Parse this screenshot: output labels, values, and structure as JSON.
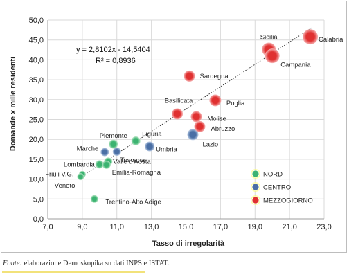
{
  "chart_data": {
    "type": "scatter",
    "xlabel": "Tasso di irregolarità",
    "ylabel": "Domande x mille residenti",
    "xlim": [
      7.0,
      23.0
    ],
    "ylim": [
      0.0,
      50.0
    ],
    "xticks": [
      7.0,
      9.0,
      11.0,
      13.0,
      15.0,
      17.0,
      19.0,
      21.0,
      23.0
    ],
    "yticks": [
      0.0,
      5.0,
      10.0,
      15.0,
      20.0,
      25.0,
      30.0,
      35.0,
      40.0,
      45.0,
      50.0
    ],
    "xtick_labels": [
      "7,0",
      "9,0",
      "11,0",
      "13,0",
      "15,0",
      "17,0",
      "19,0",
      "21,0",
      "23,0"
    ],
    "ytick_labels": [
      "0,0",
      "5,0",
      "10,0",
      "15,0",
      "20,0",
      "25,0",
      "30,0",
      "35,0",
      "40,0",
      "45,0",
      "50,0"
    ],
    "grid": true,
    "legend_position": "bottom-right",
    "trendline": {
      "slope": 2.8102,
      "intercept": -14.5404,
      "equation": "y = 2,8102x - 14,5404",
      "r2": "R² = 0,8936",
      "x_range": [
        8.9,
        22.3
      ]
    },
    "series": [
      {
        "name": "NORD",
        "color": "#3cb371",
        "points": [
          {
            "label": "Friuli V.G.",
            "x": 9.0,
            "y": 11.2
          },
          {
            "label": "Veneto",
            "x": 8.9,
            "y": 10.6
          },
          {
            "label": "Lombardia",
            "x": 10.0,
            "y": 13.7
          },
          {
            "label": "Valle d'Aosta",
            "x": 10.5,
            "y": 14.4
          },
          {
            "label": "Emilia-Romagna",
            "x": 10.4,
            "y": 13.6
          },
          {
            "label": "Piemonte",
            "x": 10.8,
            "y": 18.8
          },
          {
            "label": "Liguria",
            "x": 12.1,
            "y": 19.6
          },
          {
            "label": "Trentino-Alto Adige",
            "x": 9.7,
            "y": 5.0
          }
        ]
      },
      {
        "name": "CENTRO",
        "color": "#4a6fa5",
        "points": [
          {
            "label": "Marche",
            "x": 10.3,
            "y": 16.8
          },
          {
            "label": "Toscana",
            "x": 11.0,
            "y": 16.9
          },
          {
            "label": "Umbria",
            "x": 12.9,
            "y": 18.2
          },
          {
            "label": "Lazio",
            "x": 15.4,
            "y": 21.2
          }
        ]
      },
      {
        "name": "MEZZOGIORNO",
        "color": "#e03030",
        "points": [
          {
            "label": "Calabria",
            "x": 22.2,
            "y": 45.8
          },
          {
            "label": "Sicilia",
            "x": 19.8,
            "y": 42.6
          },
          {
            "label": "Campania",
            "x": 20.0,
            "y": 41.0
          },
          {
            "label": "Sardegna",
            "x": 15.2,
            "y": 35.9
          },
          {
            "label": "Puglia",
            "x": 16.7,
            "y": 29.8
          },
          {
            "label": "Basilicata",
            "x": 14.5,
            "y": 26.4
          },
          {
            "label": "Molise",
            "x": 15.6,
            "y": 25.7
          },
          {
            "label": "Abruzzo",
            "x": 15.8,
            "y": 23.2
          }
        ]
      }
    ]
  },
  "footer": {
    "source_label": "Fonte:",
    "source_text": " elaborazione Demoskopika su dati INPS e ISTAT."
  }
}
